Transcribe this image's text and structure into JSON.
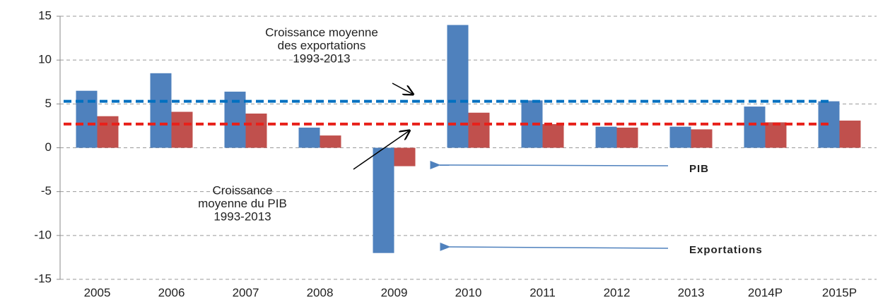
{
  "chart_data": {
    "type": "bar",
    "categories": [
      "2005",
      "2006",
      "2007",
      "2008",
      "2009",
      "2010",
      "2011",
      "2012",
      "2013",
      "2014P",
      "2015P"
    ],
    "series": [
      {
        "name": "Exportations",
        "color": "#4f81bd",
        "values": [
          6.5,
          8.5,
          6.4,
          2.3,
          -12,
          14,
          5.4,
          2.4,
          2.4,
          4.7,
          5.3
        ]
      },
      {
        "name": "PIB",
        "color": "#c0504d",
        "values": [
          3.6,
          4.1,
          3.9,
          1.4,
          -2.1,
          4.0,
          2.7,
          2.3,
          2.1,
          2.9,
          3.1
        ]
      }
    ],
    "ylim": [
      -15,
      15
    ],
    "yticks": [
      -15,
      -10,
      -5,
      0,
      5,
      10,
      15
    ],
    "grid": true,
    "reference_lines": [
      {
        "value": 5.3,
        "color": "#0070c0"
      },
      {
        "value": 2.7,
        "color": "#e8201a"
      }
    ],
    "annotations": [
      {
        "lines": [
          "Croissance moyenne",
          "des exportations",
          "1993-2013"
        ]
      },
      {
        "lines": [
          "Croissance",
          "moyenne du PIB",
          "1993-2013"
        ]
      }
    ]
  }
}
